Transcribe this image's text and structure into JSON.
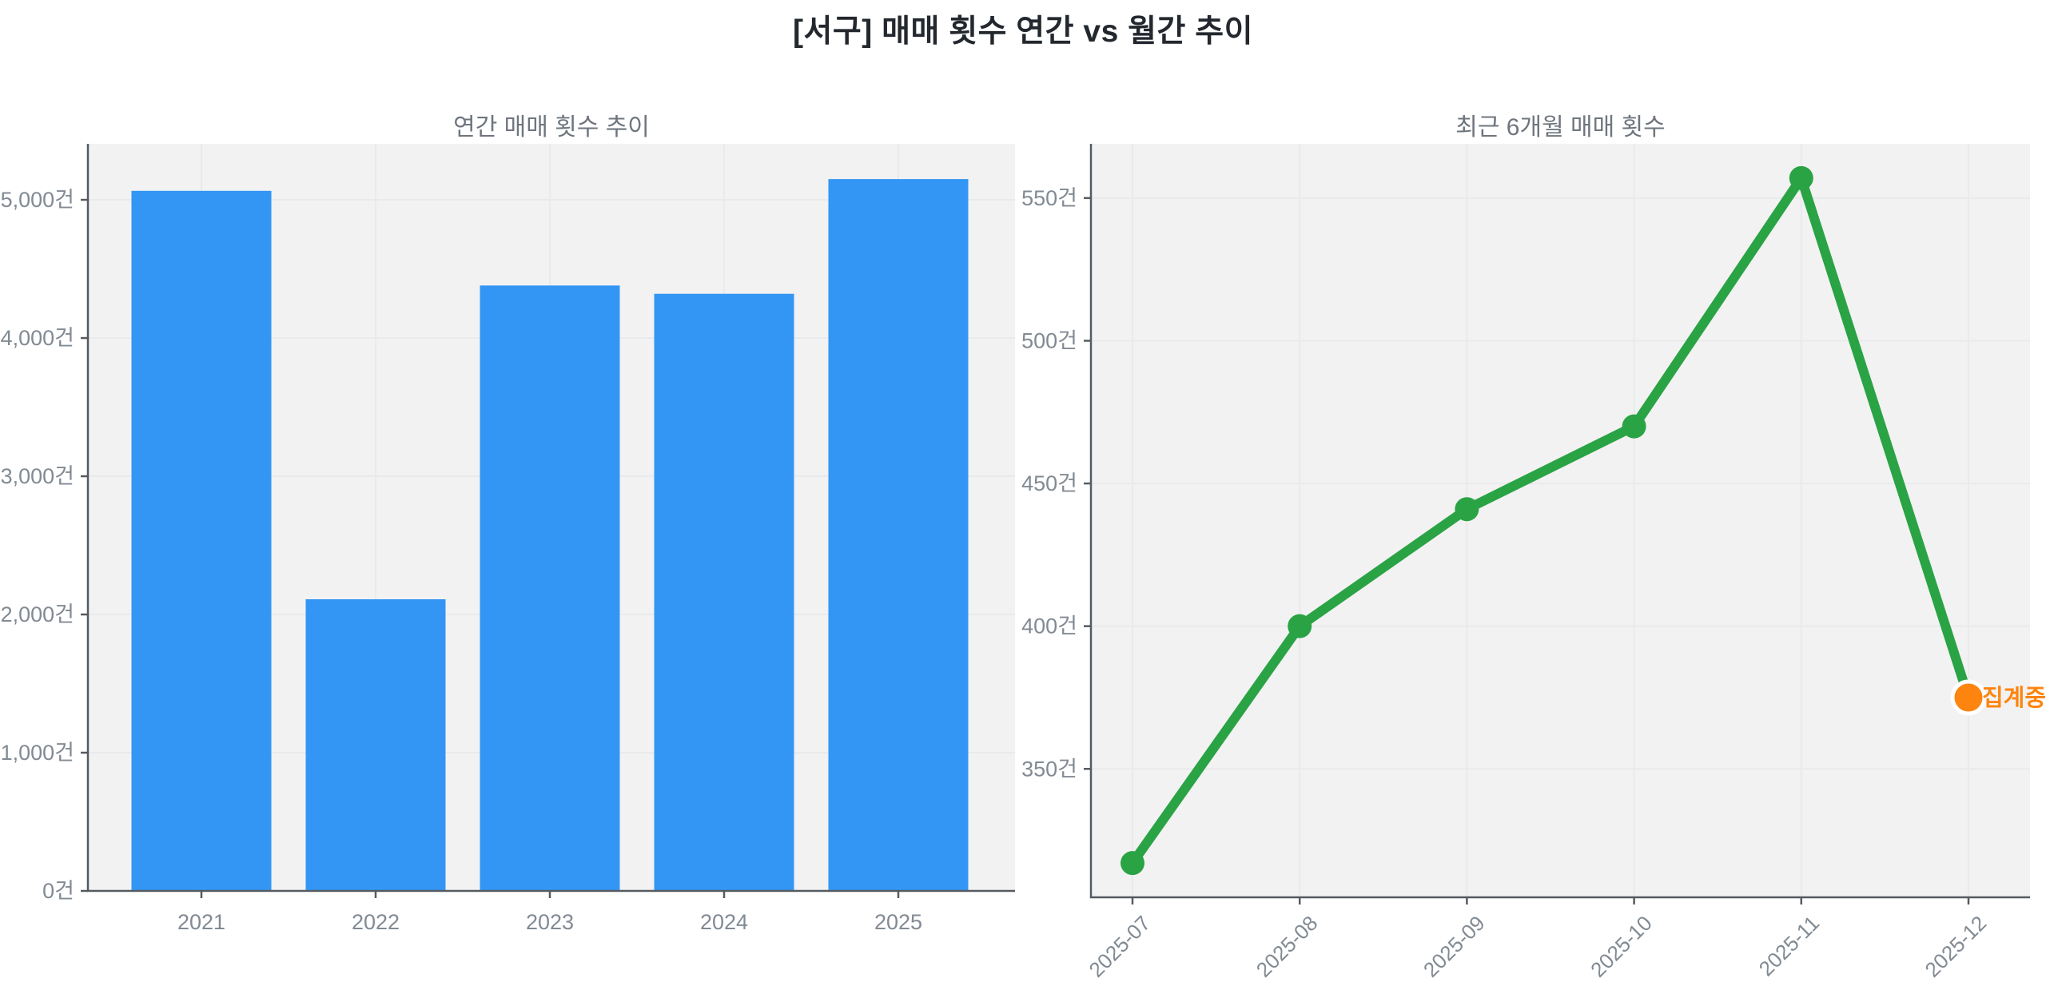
{
  "figure": {
    "title": "[서구] 매매 횟수 연간 vs 월간 추이"
  },
  "style": {
    "plot_bg": "#f2f2f3",
    "grid_color": "#e9eaeb",
    "spine_color": "#565b61",
    "tick_label_color": "#828a93",
    "subplot_title_color": "#6e757e",
    "figure_title_color": "#23272e",
    "bar_color": "#3396f4",
    "line_color": "#2aa344",
    "pending_color": "#fd850f"
  },
  "chart_data": [
    {
      "type": "bar",
      "title": "연간 매매 횟수 추이",
      "categories": [
        "2021",
        "2022",
        "2023",
        "2024",
        "2025"
      ],
      "values": [
        5065,
        2110,
        4380,
        4320,
        5150
      ],
      "unit": "건",
      "xlabel": "",
      "ylabel": "",
      "ylim": [
        0,
        5405
      ],
      "yticks": [
        0,
        1000,
        2000,
        3000,
        4000,
        5000
      ],
      "grid": true,
      "legend": "none"
    },
    {
      "type": "line",
      "title": "최근 6개월 매매 횟수",
      "x": [
        "2025-07",
        "2025-08",
        "2025-09",
        "2025-10",
        "2025-11",
        "2025-12"
      ],
      "values": [
        317,
        400,
        441,
        470,
        557,
        375
      ],
      "unit": "건",
      "xlabel": "",
      "ylabel": "",
      "ylim": [
        305,
        569
      ],
      "yticks": [
        350,
        400,
        450,
        500,
        550
      ],
      "grid": true,
      "legend": "none",
      "annotation": {
        "text": "집계중",
        "applies_to": "2025-12"
      },
      "pending_last_point": true
    }
  ]
}
